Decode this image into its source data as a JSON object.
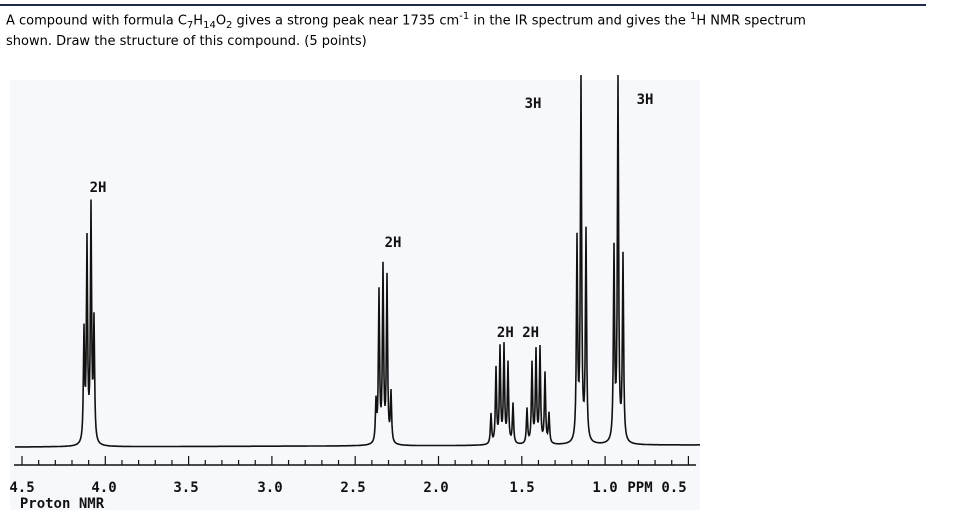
{
  "question": {
    "line1": [
      "A compound with formula C",
      "7",
      "H",
      "14",
      "O",
      "2",
      " gives a strong peak near 1735 cm",
      "-1",
      " in the IR spectrum and gives the ",
      "1",
      "H NMR spectrum"
    ],
    "line2": "shown. Draw the structure of this compound.  (5 points)"
  },
  "spectrum": {
    "integrations": [
      "2H",
      "2H",
      "3H",
      "3H",
      "2H 2H"
    ],
    "axis_labels": [
      "4.5",
      "4.0",
      "3.5",
      "3.0",
      "2.5",
      "2.0",
      "1.5",
      "1.0",
      "PPM",
      "0.5"
    ],
    "caption": "Proton NMR"
  }
}
